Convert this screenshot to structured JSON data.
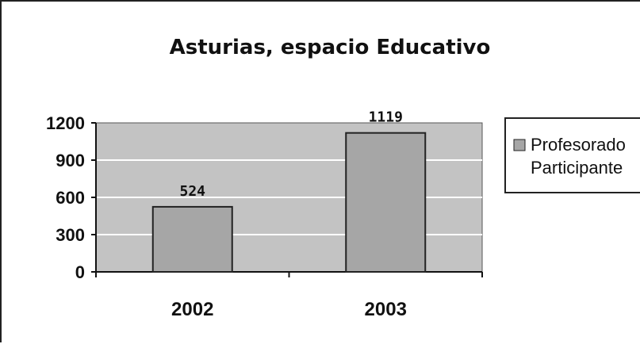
{
  "chart_data": {
    "type": "bar",
    "title": "Asturias, espacio Educativo",
    "categories": [
      "2002",
      "2003"
    ],
    "series": [
      {
        "name": "Profesorado Participante",
        "values": [
          524,
          1119
        ],
        "color": "#a6a6a6"
      }
    ],
    "legend_lines": [
      "Profesorado",
      "Participante"
    ],
    "yticks": [
      "0",
      "300",
      "600",
      "900",
      "1200"
    ],
    "ylim": [
      0,
      1200
    ],
    "grid": true,
    "plot_bg": "#c3c3c3",
    "legend_position": "right"
  }
}
